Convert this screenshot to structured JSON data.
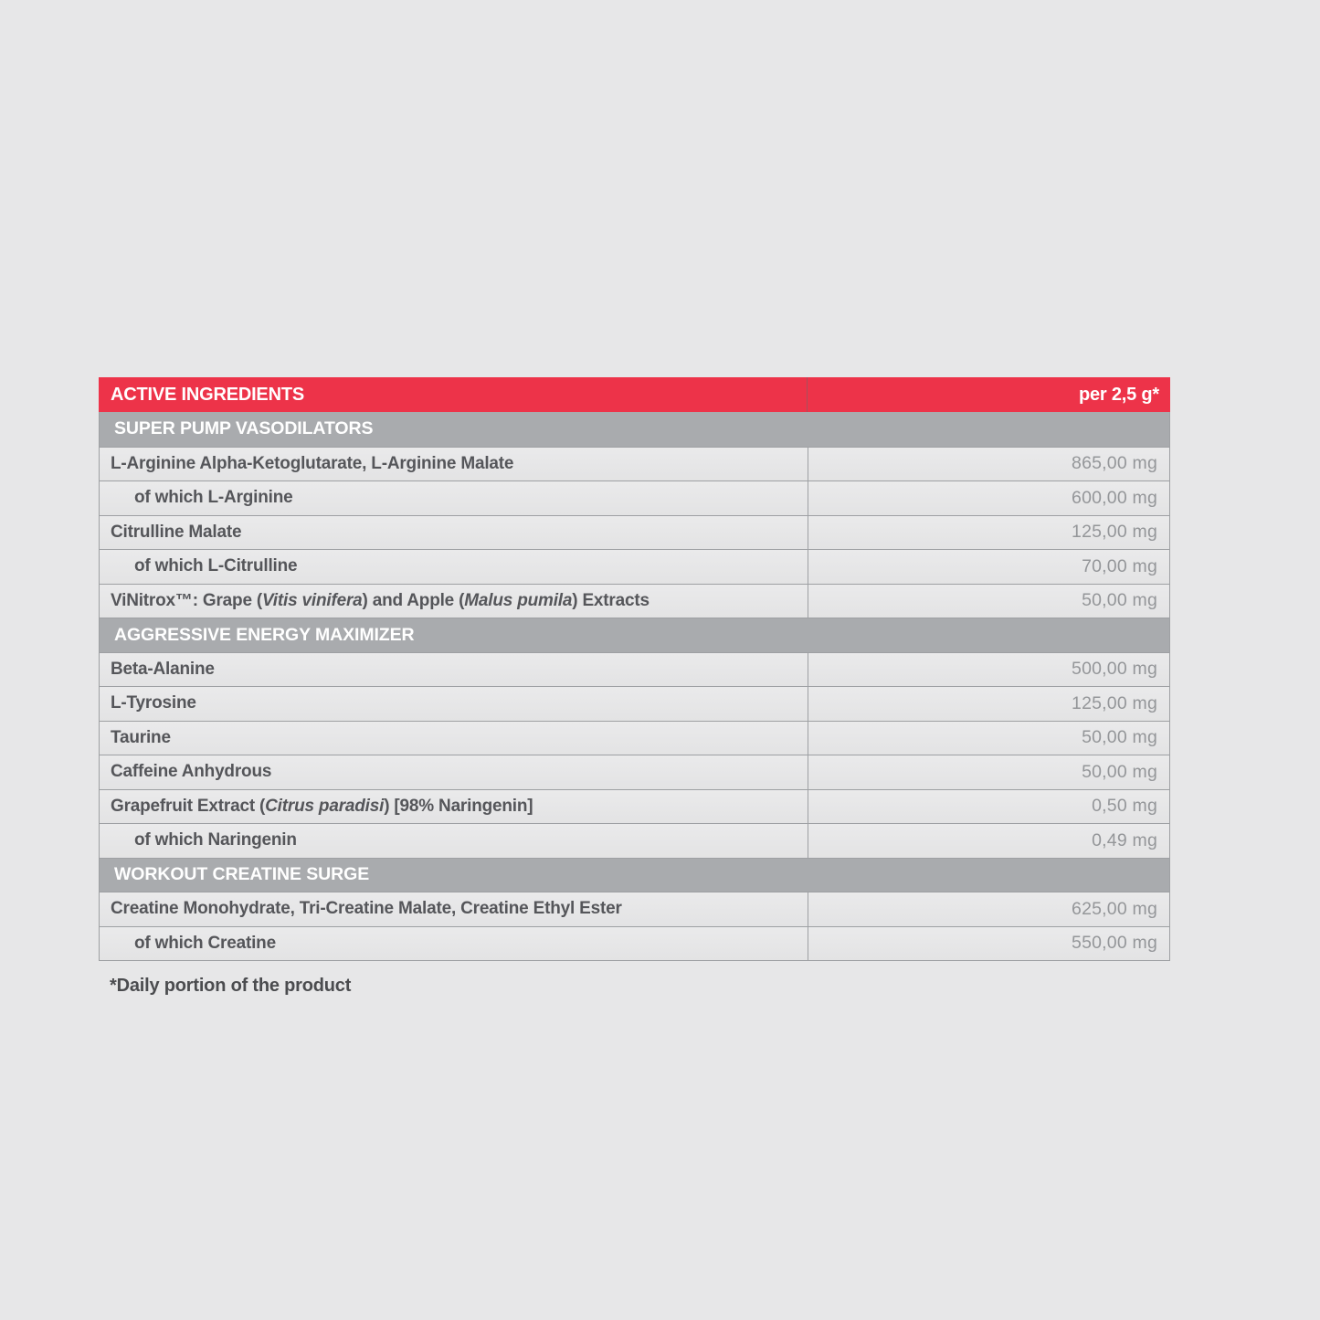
{
  "colors": {
    "accent_red": "#ED3349",
    "section_gray": "#A9ABAE",
    "page_background": "#e7e7e8",
    "border_gray": "#9EA0A3",
    "label_text": "#55565A",
    "value_text": "#949699"
  },
  "table": {
    "header": {
      "left": "ACTIVE INGREDIENTS",
      "right": "per 2,5 g*"
    },
    "rows": [
      {
        "type": "section",
        "label": "SUPER PUMP VASODILATORS"
      },
      {
        "type": "item",
        "indent": false,
        "segments": [
          {
            "text": "L-Arginine Alpha-Ketoglutarate, L-Arginine Malate"
          }
        ],
        "value": "865,00 mg"
      },
      {
        "type": "item",
        "indent": true,
        "segments": [
          {
            "text": "of which L-Arginine"
          }
        ],
        "value": "600,00 mg"
      },
      {
        "type": "item",
        "indent": false,
        "segments": [
          {
            "text": "Citrulline Malate"
          }
        ],
        "value": "125,00 mg"
      },
      {
        "type": "item",
        "indent": true,
        "segments": [
          {
            "text": "of which L-Citrulline"
          }
        ],
        "value": "70,00 mg"
      },
      {
        "type": "item",
        "indent": false,
        "segments": [
          {
            "text": "ViNitrox™: Grape ("
          },
          {
            "text": "Vitis vinifera",
            "italic": true
          },
          {
            "text": ") and Apple ("
          },
          {
            "text": "Malus pumila",
            "italic": true
          },
          {
            "text": ") Extracts"
          }
        ],
        "value": "50,00 mg"
      },
      {
        "type": "section",
        "label": "AGGRESSIVE ENERGY MAXIMIZER"
      },
      {
        "type": "item",
        "indent": false,
        "segments": [
          {
            "text": "Beta-Alanine"
          }
        ],
        "value": "500,00 mg"
      },
      {
        "type": "item",
        "indent": false,
        "segments": [
          {
            "text": "L-Tyrosine"
          }
        ],
        "value": "125,00 mg"
      },
      {
        "type": "item",
        "indent": false,
        "segments": [
          {
            "text": "Taurine"
          }
        ],
        "value": "50,00 mg"
      },
      {
        "type": "item",
        "indent": false,
        "segments": [
          {
            "text": "Caffeine Anhydrous"
          }
        ],
        "value": "50,00 mg"
      },
      {
        "type": "item",
        "indent": false,
        "segments": [
          {
            "text": "Grapefruit Extract ("
          },
          {
            "text": "Citrus paradisi",
            "italic": true
          },
          {
            "text": ") [98% Naringenin]"
          }
        ],
        "value": "0,50 mg"
      },
      {
        "type": "item",
        "indent": true,
        "segments": [
          {
            "text": "of which Naringenin"
          }
        ],
        "value": "0,49 mg"
      },
      {
        "type": "section",
        "label": "WORKOUT CREATINE SURGE"
      },
      {
        "type": "item",
        "indent": false,
        "segments": [
          {
            "text": "Creatine Monohydrate, Tri-Creatine Malate, Creatine Ethyl Ester"
          }
        ],
        "value": "625,00 mg"
      },
      {
        "type": "item",
        "indent": true,
        "segments": [
          {
            "text": "of which Creatine"
          }
        ],
        "value": "550,00 mg"
      }
    ],
    "footnote": "*Daily portion of the product"
  }
}
